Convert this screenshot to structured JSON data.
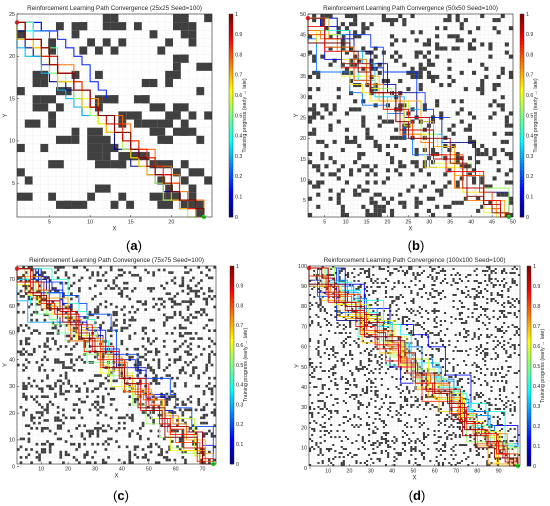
{
  "colors": {
    "obstacle": "#404040",
    "start": "#ff2020",
    "goal": "#22dd22",
    "grid": "#e8e8e8"
  },
  "colorbar": {
    "label": "Training progress (early → late)",
    "ticks": [
      "0",
      "0.1",
      "0.2",
      "0.3",
      "0.4",
      "0.5",
      "0.6",
      "0.7",
      "0.8",
      "0.9",
      "1"
    ]
  },
  "panels": [
    {
      "caption": "a",
      "title": "Reinforcement Learning Path Convergence (25x25 Seed=100)"
    },
    {
      "caption": "b",
      "title": "Reinforcement Learning Path Convergence (50x50 Seed=100)"
    },
    {
      "caption": "c",
      "title": "Reinforcement Learning Path Convergence (75x75 Seed=100)"
    },
    {
      "caption": "d",
      "title": "Reinforcement Learning Path Convergence (100x100 Seed=100)"
    }
  ],
  "chart_data": [
    {
      "type": "heatmap",
      "grid_size": 25,
      "seed": 100,
      "xlabel": "X",
      "ylabel": "Y",
      "xlim": [
        1,
        25
      ],
      "ylim": [
        1,
        25
      ],
      "xticks": [
        5,
        10,
        15,
        20
      ],
      "yticks": [
        5,
        10,
        15,
        20,
        25
      ],
      "obstacle_density": 0.28,
      "start": [
        1,
        24
      ],
      "goal": [
        24,
        1
      ],
      "colorbar_range": [
        0,
        1
      ],
      "path_count": 14
    },
    {
      "type": "heatmap",
      "grid_size": 50,
      "seed": 100,
      "xlabel": "X",
      "ylabel": "Y",
      "xlim": [
        1,
        50
      ],
      "ylim": [
        1,
        50
      ],
      "xticks": [
        5,
        10,
        15,
        20,
        25,
        30,
        35,
        40,
        45,
        50
      ],
      "yticks": [
        5,
        10,
        15,
        20,
        25,
        30,
        35,
        40,
        45,
        50
      ],
      "obstacle_density": 0.22,
      "start": [
        1,
        49
      ],
      "goal": [
        49,
        1
      ],
      "colorbar_range": [
        0,
        1
      ],
      "path_count": 18
    },
    {
      "type": "heatmap",
      "grid_size": 75,
      "seed": 100,
      "xlabel": "X",
      "ylabel": "Y",
      "xlim": [
        1,
        75
      ],
      "ylim": [
        1,
        75
      ],
      "xticks": [
        10,
        20,
        30,
        40,
        50,
        60,
        70
      ],
      "yticks": [
        0,
        10,
        20,
        30,
        40,
        50,
        60,
        70
      ],
      "obstacle_density": 0.2,
      "start": [
        1,
        74
      ],
      "goal": [
        74,
        1
      ],
      "colorbar_range": [
        0,
        1
      ],
      "path_count": 22
    },
    {
      "type": "heatmap",
      "grid_size": 100,
      "seed": 100,
      "xlabel": "X",
      "ylabel": "Y",
      "xlim": [
        1,
        100
      ],
      "ylim": [
        1,
        100
      ],
      "xticks": [
        10,
        20,
        30,
        40,
        50,
        60,
        70,
        80,
        90
      ],
      "yticks": [
        0,
        10,
        20,
        30,
        40,
        50,
        60,
        70,
        80,
        90,
        100
      ],
      "obstacle_density": 0.18,
      "start": [
        1,
        99
      ],
      "goal": [
        99,
        1
      ],
      "colorbar_range": [
        0,
        1
      ],
      "path_count": 26
    }
  ]
}
